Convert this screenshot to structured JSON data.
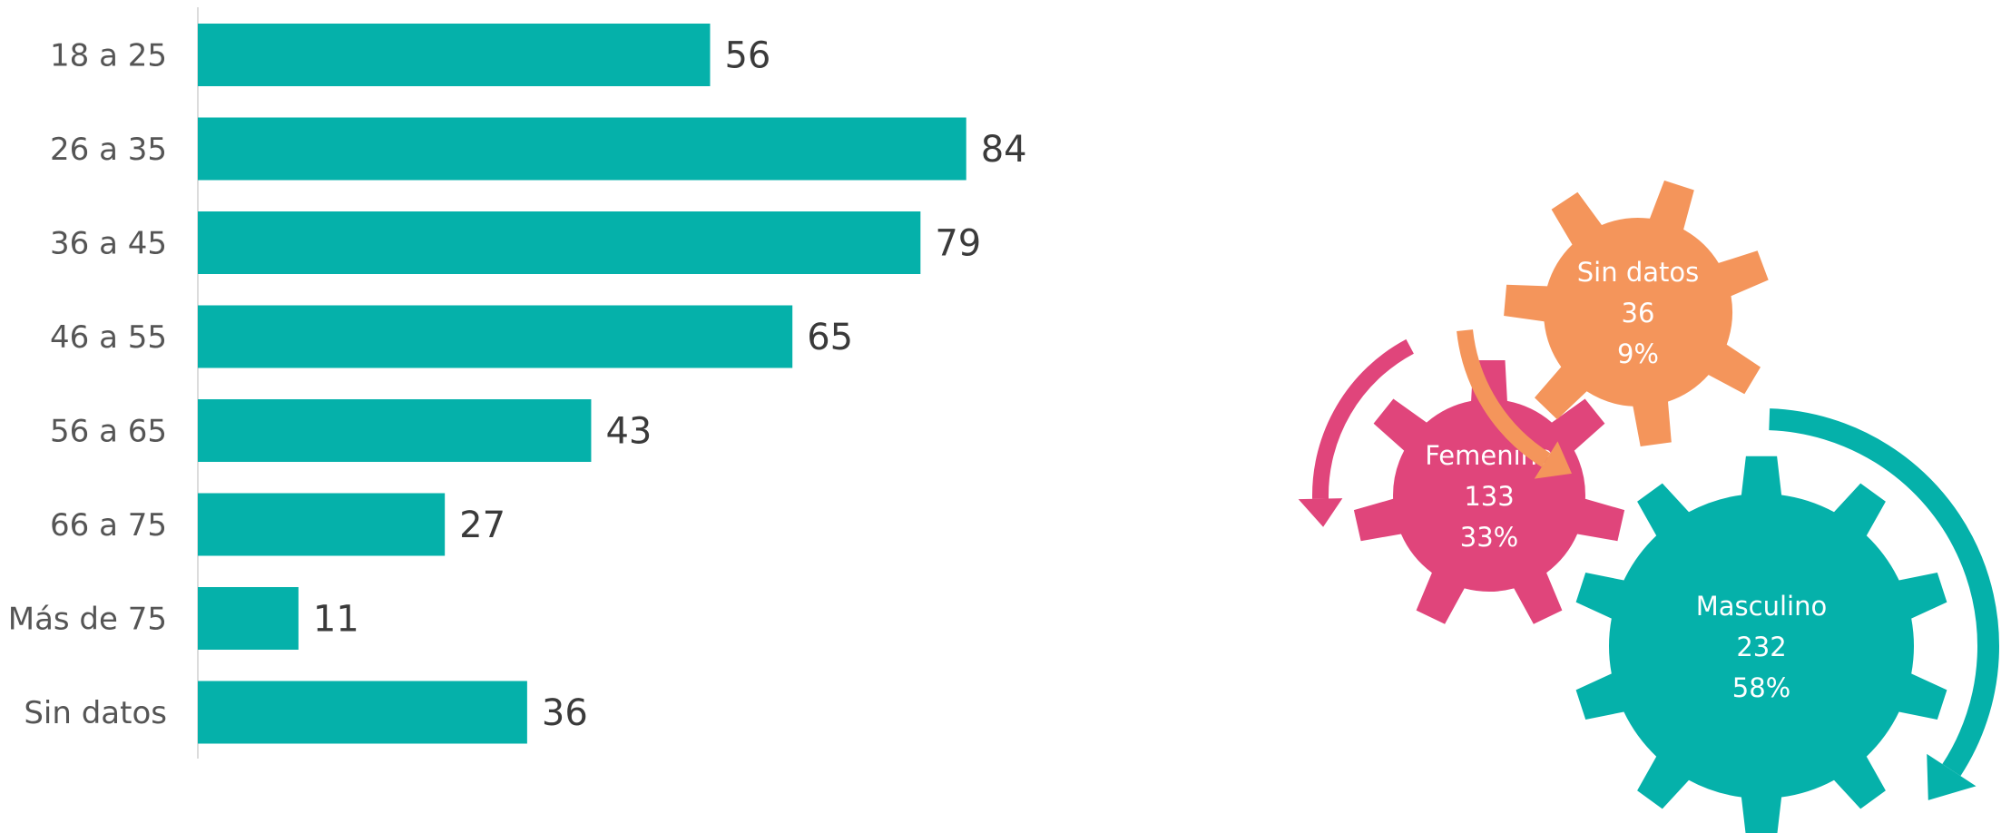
{
  "chart_data": [
    {
      "type": "bar",
      "orientation": "horizontal",
      "categories": [
        "18 a 25",
        "26 a 35",
        "36 a 45",
        "46 a 55",
        "56 a 65",
        "66 a 75",
        "Más de 75",
        "Sin datos"
      ],
      "values": [
        56,
        84,
        79,
        65,
        43,
        27,
        11,
        36
      ],
      "xlim": [
        0,
        100
      ],
      "grid": false,
      "color": "#05b1aa"
    },
    {
      "type": "pie",
      "style": "gears",
      "slices": [
        {
          "label": "Masculino",
          "value": 232,
          "percent": "58%",
          "color": "#05b1aa"
        },
        {
          "label": "Femenina",
          "value": 133,
          "percent": "33%",
          "color": "#e0457b"
        },
        {
          "label": "Sin datos",
          "value": 36,
          "percent": "9%",
          "color": "#f4955b"
        }
      ]
    }
  ]
}
